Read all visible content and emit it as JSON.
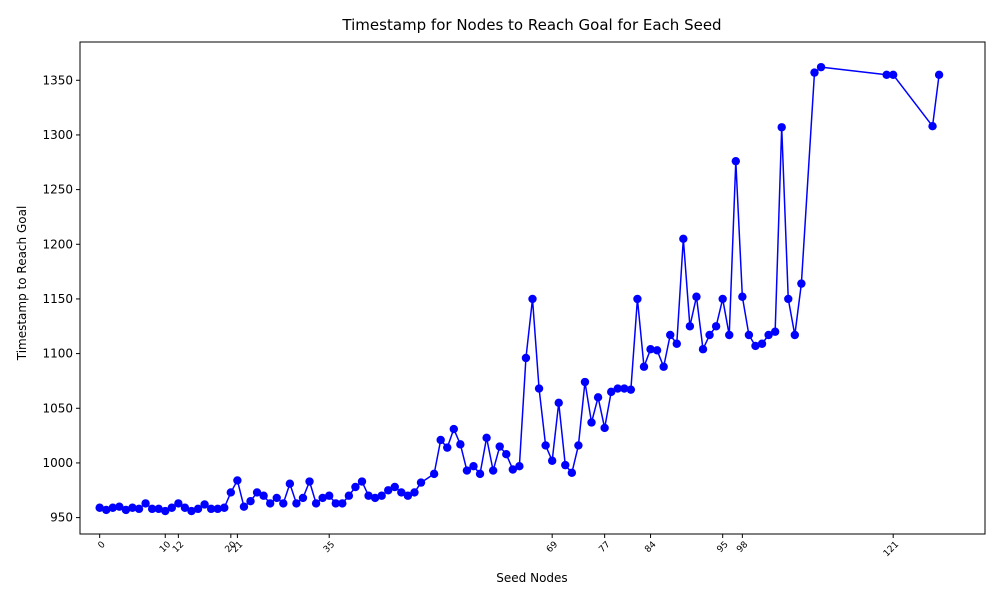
{
  "chart_data": {
    "type": "line",
    "title": "Timestamp for Nodes to Reach Goal for Each Seed",
    "xlabel": "Seed Nodes",
    "ylabel": "Timestamp to Reach Goal",
    "xlim": [
      -3,
      135
    ],
    "ylim": [
      935,
      1385
    ],
    "yticks": [
      950,
      1000,
      1050,
      1100,
      1150,
      1200,
      1250,
      1300,
      1350
    ],
    "xticks": [
      0,
      10,
      12,
      20,
      21,
      35,
      69,
      77,
      84,
      95,
      98,
      121
    ],
    "grid": false,
    "legend": "none",
    "series": [
      {
        "color": "#0000ff",
        "marker": "circle",
        "points": [
          [
            0,
            959
          ],
          [
            1,
            957
          ],
          [
            2,
            959
          ],
          [
            3,
            960
          ],
          [
            4,
            957
          ],
          [
            5,
            959
          ],
          [
            6,
            958
          ],
          [
            7,
            963
          ],
          [
            8,
            958
          ],
          [
            9,
            958
          ],
          [
            10,
            956
          ],
          [
            11,
            959
          ],
          [
            12,
            963
          ],
          [
            13,
            959
          ],
          [
            14,
            956
          ],
          [
            15,
            958
          ],
          [
            16,
            962
          ],
          [
            17,
            958
          ],
          [
            18,
            958
          ],
          [
            19,
            959
          ],
          [
            20,
            973
          ],
          [
            21,
            984
          ],
          [
            22,
            960
          ],
          [
            23,
            965
          ],
          [
            24,
            973
          ],
          [
            25,
            970
          ],
          [
            26,
            963
          ],
          [
            27,
            968
          ],
          [
            28,
            963
          ],
          [
            29,
            981
          ],
          [
            30,
            963
          ],
          [
            31,
            968
          ],
          [
            32,
            983
          ],
          [
            33,
            963
          ],
          [
            34,
            968
          ],
          [
            35,
            970
          ],
          [
            36,
            963
          ],
          [
            37,
            963
          ],
          [
            38,
            970
          ],
          [
            39,
            978
          ],
          [
            40,
            983
          ],
          [
            41,
            970
          ],
          [
            42,
            968
          ],
          [
            43,
            970
          ],
          [
            44,
            975
          ],
          [
            45,
            978
          ],
          [
            46,
            973
          ],
          [
            47,
            970
          ],
          [
            48,
            973
          ],
          [
            49,
            982
          ],
          [
            51,
            990
          ],
          [
            52,
            1021
          ],
          [
            53,
            1014
          ],
          [
            54,
            1031
          ],
          [
            55,
            1017
          ],
          [
            56,
            993
          ],
          [
            57,
            997
          ],
          [
            58,
            990
          ],
          [
            59,
            1023
          ],
          [
            60,
            993
          ],
          [
            61,
            1015
          ],
          [
            62,
            1008
          ],
          [
            63,
            994
          ],
          [
            64,
            997
          ],
          [
            65,
            1096
          ],
          [
            66,
            1150
          ],
          [
            67,
            1068
          ],
          [
            68,
            1016
          ],
          [
            69,
            1002
          ],
          [
            70,
            1055
          ],
          [
            71,
            998
          ],
          [
            72,
            991
          ],
          [
            73,
            1016
          ],
          [
            74,
            1074
          ],
          [
            75,
            1037
          ],
          [
            76,
            1060
          ],
          [
            77,
            1032
          ],
          [
            78,
            1065
          ],
          [
            79,
            1068
          ],
          [
            80,
            1068
          ],
          [
            81,
            1067
          ],
          [
            82,
            1150
          ],
          [
            83,
            1088
          ],
          [
            84,
            1104
          ],
          [
            85,
            1103
          ],
          [
            86,
            1088
          ],
          [
            87,
            1117
          ],
          [
            88,
            1109
          ],
          [
            89,
            1205
          ],
          [
            90,
            1125
          ],
          [
            91,
            1152
          ],
          [
            92,
            1104
          ],
          [
            93,
            1117
          ],
          [
            94,
            1125
          ],
          [
            95,
            1150
          ],
          [
            96,
            1117
          ],
          [
            97,
            1276
          ],
          [
            98,
            1152
          ],
          [
            99,
            1117
          ],
          [
            100,
            1107
          ],
          [
            101,
            1109
          ],
          [
            102,
            1117
          ],
          [
            103,
            1120
          ],
          [
            104,
            1307
          ],
          [
            105,
            1150
          ],
          [
            106,
            1117
          ],
          [
            107,
            1164
          ],
          [
            109,
            1357
          ],
          [
            110,
            1362
          ],
          [
            120,
            1355
          ],
          [
            121,
            1355
          ],
          [
            127,
            1308
          ],
          [
            128,
            1355
          ]
        ]
      }
    ]
  }
}
